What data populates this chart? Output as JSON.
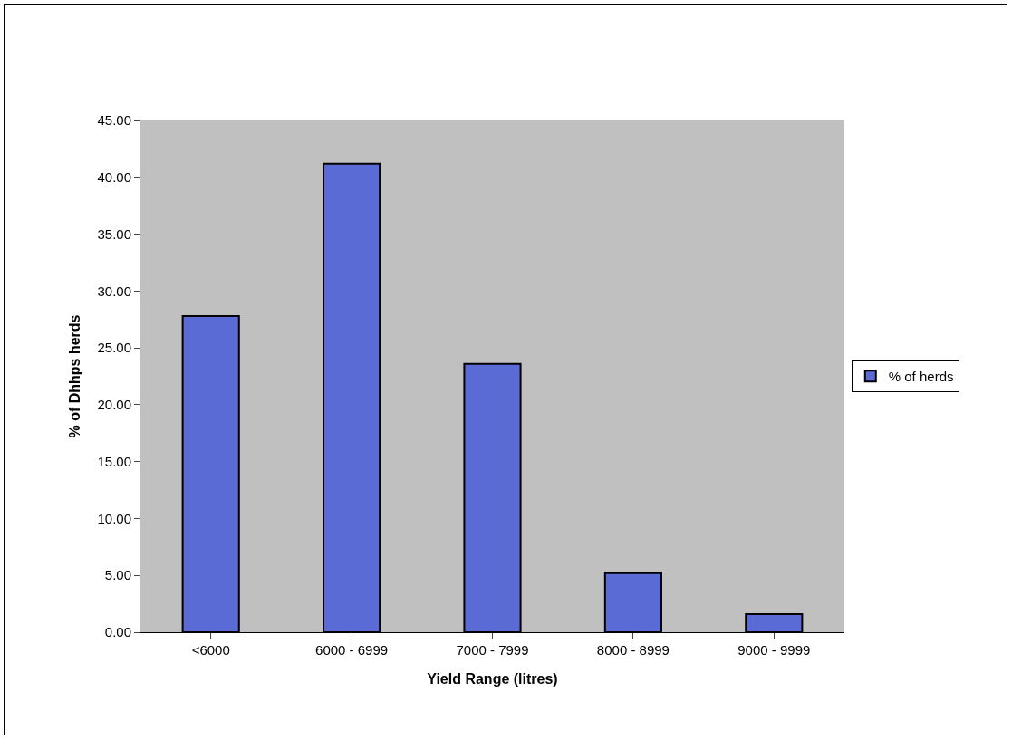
{
  "chart_data": {
    "type": "bar",
    "xlabel": "Yield Range (litres)",
    "ylabel": "% of Dhhps herds",
    "categories": [
      "<6000",
      "6000 - 6999",
      "7000 - 7999",
      "8000 - 8999",
      "9000 - 9999"
    ],
    "series": [
      {
        "name": "% of herds",
        "color": "#5b6bd5",
        "values": [
          27.8,
          41.2,
          23.6,
          5.2,
          1.6
        ]
      }
    ],
    "ylim": [
      0,
      45
    ],
    "yticks": [
      {
        "value": 0,
        "label": "0.00"
      },
      {
        "value": 5,
        "label": "5.00"
      },
      {
        "value": 10,
        "label": "10.00"
      },
      {
        "value": 15,
        "label": "15.00"
      },
      {
        "value": 20,
        "label": "20.00"
      },
      {
        "value": 25,
        "label": "25.00"
      },
      {
        "value": 30,
        "label": "30.00"
      },
      {
        "value": 35,
        "label": "35.00"
      },
      {
        "value": 40,
        "label": "40.00"
      },
      {
        "value": 45,
        "label": "45.00"
      }
    ],
    "grid": false,
    "legend": "right"
  }
}
